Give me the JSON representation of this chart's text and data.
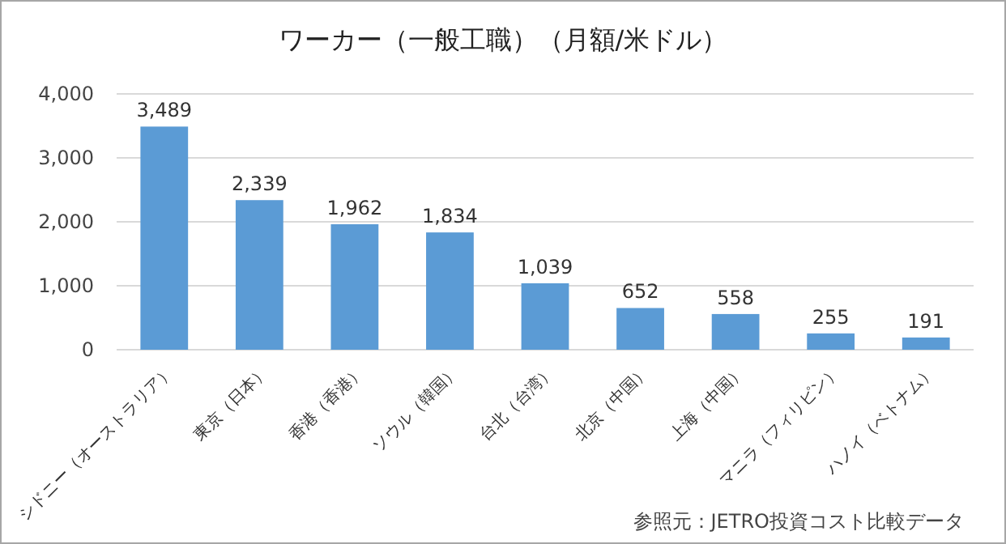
{
  "chart_data": {
    "type": "bar",
    "title": "ワーカー（一般工職）（月額/米ドル）",
    "categories": [
      "シドニー（オーストラリア）",
      "東京（日本）",
      "香港（香港）",
      "ソウル（韓国）",
      "台北（台湾）",
      "北京（中国）",
      "上海（中国）",
      "マニラ（フィリピン）",
      "ハノイ（ベトナム）"
    ],
    "values": [
      3489,
      2339,
      1962,
      1834,
      1039,
      652,
      558,
      255,
      191
    ],
    "color": "#5b9bd5",
    "ylim": [
      0,
      4000
    ],
    "yticks": [
      {
        "value": 0,
        "label": "0"
      },
      {
        "value": 1000,
        "label": "1,000"
      },
      {
        "value": 2000,
        "label": "2,000"
      },
      {
        "value": 3000,
        "label": "3,000"
      },
      {
        "value": 4000,
        "label": "4,000"
      }
    ],
    "grid": "y",
    "value_labels": [
      "3,489",
      "2,339",
      "1,962",
      "1,834",
      "1,039",
      "652",
      "558",
      "255",
      "191"
    ],
    "annotations": [
      "参照元：JETRO投資コスト比較データ"
    ]
  }
}
